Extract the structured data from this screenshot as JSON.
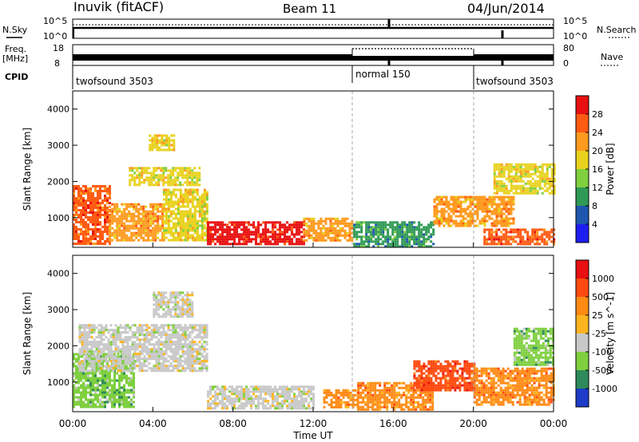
{
  "header": {
    "station": "Inuvik (fitACF)",
    "beam": "Beam 11",
    "date": "04/Jun/2014"
  },
  "top_panels": {
    "nsky_label": "N.Sky",
    "nsky_ticks": [
      "10^5",
      "10^0"
    ],
    "nsearch_label": "N.Search",
    "nsearch_ticks": [
      "10^5",
      "10^0"
    ],
    "freq_label": "Freq.",
    "freq_unit": "[MHz]",
    "freq_ticks": [
      "18",
      "8"
    ],
    "nave_label": "Nave",
    "nave_ticks": [
      "80",
      "0"
    ],
    "cpid_label": "CPID",
    "cpid_segments": [
      {
        "label": "twofsound 3503",
        "start_h": 0,
        "end_h": 14.0
      },
      {
        "label": "normal 150",
        "start_h": 14.0,
        "end_h": 20.0
      },
      {
        "label": "twofsound 3503",
        "start_h": 20.0,
        "end_h": 24.0
      }
    ]
  },
  "chart_data": [
    {
      "type": "heatmap",
      "title": "",
      "xlabel": "Time UT",
      "ylabel": "Slant Range [km]",
      "x_ticks": [
        "00:00",
        "04:00",
        "08:00",
        "12:00",
        "16:00",
        "20:00",
        "00:00"
      ],
      "y_ticks": [
        "1000",
        "2000",
        "3000",
        "4000"
      ],
      "ylim": [
        180,
        4500
      ],
      "colorbar": {
        "label": "Power [dB]",
        "ticks": [
          "4",
          "8",
          "12",
          "16",
          "20",
          "24",
          "28"
        ],
        "colors": [
          "#1e1ef0",
          "#1f57b0",
          "#2f9a55",
          "#7fcf3f",
          "#e8d21e",
          "#ff9a1e",
          "#ff5a12",
          "#e81010"
        ]
      },
      "regions": [
        {
          "x": [
            0,
            1.8
          ],
          "y": [
            300,
            1900
          ],
          "level": 6
        },
        {
          "x": [
            1.8,
            4.5
          ],
          "y": [
            350,
            1400
          ],
          "level": 5
        },
        {
          "x": [
            4.5,
            6.7
          ],
          "y": [
            400,
            1800
          ],
          "level": 4
        },
        {
          "x": [
            2.8,
            6.3
          ],
          "y": [
            1900,
            2400
          ],
          "level": 4
        },
        {
          "x": [
            3.8,
            5.0
          ],
          "y": [
            2900,
            3300
          ],
          "level": 4
        },
        {
          "x": [
            6.7,
            11.5
          ],
          "y": [
            250,
            900
          ],
          "level": 7
        },
        {
          "x": [
            11.5,
            14.0
          ],
          "y": [
            350,
            1000
          ],
          "level": 5
        },
        {
          "x": [
            14.0,
            18.0
          ],
          "y": [
            200,
            900
          ],
          "level": 2
        },
        {
          "x": [
            18.0,
            22.0
          ],
          "y": [
            800,
            1600
          ],
          "level": 5
        },
        {
          "x": [
            20.5,
            24.0
          ],
          "y": [
            250,
            700
          ],
          "level": 6
        },
        {
          "x": [
            21.0,
            24.0
          ],
          "y": [
            1700,
            2500
          ],
          "level": 4
        }
      ]
    },
    {
      "type": "heatmap",
      "title": "",
      "xlabel": "Time UT",
      "ylabel": "Slant Range [km]",
      "x_ticks": [
        "00:00",
        "04:00",
        "08:00",
        "12:00",
        "16:00",
        "20:00",
        "00:00"
      ],
      "y_ticks": [
        "1000",
        "2000",
        "3000",
        "4000"
      ],
      "ylim": [
        180,
        4500
      ],
      "colorbar": {
        "label": "Velocity [m s^-1]",
        "ticks": [
          "1000",
          "500",
          "25",
          "-25",
          "-100",
          "-500",
          "-1000"
        ],
        "colors": [
          "#1e3cc8",
          "#2e8a5a",
          "#7fcf3f",
          "#c8c8c8",
          "#ffb41e",
          "#ff8a14",
          "#ff4a10",
          "#e81010"
        ]
      },
      "regions": [
        {
          "x": [
            0,
            3.0
          ],
          "y": [
            300,
            1800
          ],
          "level": 2
        },
        {
          "x": [
            0.3,
            6.7
          ],
          "y": [
            1300,
            2600
          ],
          "level": 3
        },
        {
          "x": [
            4.0,
            6.0
          ],
          "y": [
            2800,
            3500
          ],
          "level": 3
        },
        {
          "x": [
            6.7,
            12.0
          ],
          "y": [
            300,
            900
          ],
          "level": 3
        },
        {
          "x": [
            12.5,
            14.2
          ],
          "y": [
            300,
            800
          ],
          "level": 5
        },
        {
          "x": [
            14.2,
            18.0
          ],
          "y": [
            250,
            1000
          ],
          "level": 5
        },
        {
          "x": [
            17.0,
            20.0
          ],
          "y": [
            800,
            1600
          ],
          "level": 6
        },
        {
          "x": [
            20.0,
            24.0
          ],
          "y": [
            400,
            1400
          ],
          "level": 5
        },
        {
          "x": [
            22.0,
            24.0
          ],
          "y": [
            1500,
            2500
          ],
          "level": 2
        }
      ]
    }
  ]
}
